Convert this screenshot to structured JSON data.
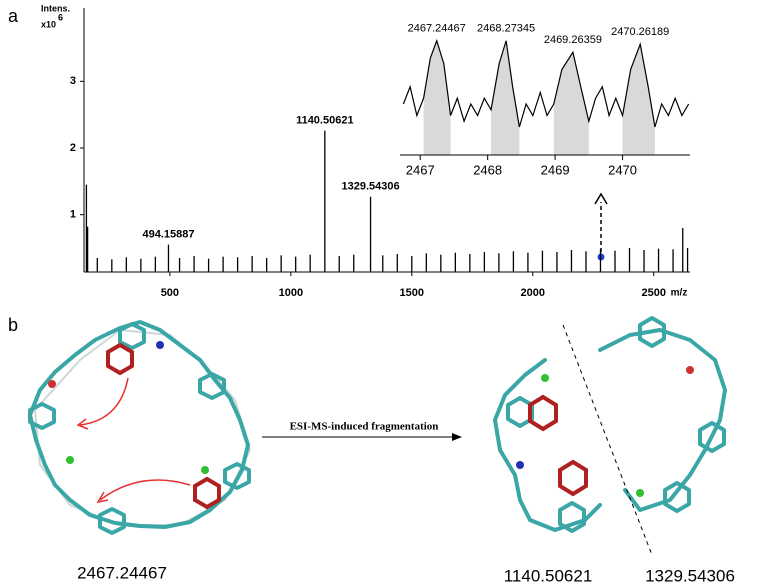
{
  "panel_labels": [
    "a",
    "b"
  ],
  "chart_data": [
    {
      "type": "bar",
      "y_label": "Intens.",
      "y_unit": "x10",
      "y_unit_exp": "6",
      "x_label": "m/z",
      "x": [
        155,
        160,
        200,
        260,
        320,
        380,
        440,
        494.15887,
        540,
        600,
        660,
        720,
        780,
        840,
        900,
        960,
        1020,
        1080,
        1140.50621,
        1200,
        1260,
        1329.54306,
        1380,
        1440,
        1500,
        1560,
        1620,
        1680,
        1740,
        1800,
        1860,
        1920,
        1980,
        2040,
        2100,
        2160,
        2220,
        2280,
        2340,
        2400,
        2460,
        2520,
        2580,
        2620,
        2640
      ],
      "values": [
        1.45,
        0.82,
        0.35,
        0.33,
        0.36,
        0.34,
        0.37,
        0.55,
        0.35,
        0.38,
        0.34,
        0.37,
        0.36,
        0.38,
        0.35,
        0.39,
        0.37,
        0.4,
        2.26,
        0.38,
        0.4,
        1.27,
        0.39,
        0.41,
        0.38,
        0.42,
        0.4,
        0.43,
        0.41,
        0.44,
        0.42,
        0.45,
        0.43,
        0.46,
        0.44,
        0.47,
        0.45,
        0.48,
        0.46,
        0.5,
        0.47,
        0.49,
        0.48,
        0.8,
        0.5
      ],
      "annotations": [
        494.15887,
        1140.50621,
        1329.54306
      ],
      "color": "#000000",
      "xlim": [
        145,
        2650
      ],
      "xticks": [
        500,
        1000,
        1500,
        2000,
        2500
      ],
      "ylim": [
        0.14,
        4.1
      ],
      "yticks": [
        1,
        2,
        3
      ]
    },
    {
      "type": "area",
      "x": [
        2466.75,
        2466.85,
        2466.95,
        2467.05,
        2467.15,
        2467.24467,
        2467.35,
        2467.45,
        2467.55,
        2467.65,
        2467.75,
        2467.85,
        2467.95,
        2468.05,
        2468.17,
        2468.27345,
        2468.37,
        2468.47,
        2468.57,
        2468.67,
        2468.78,
        2468.88,
        2468.98,
        2469.1,
        2469.26359,
        2469.4,
        2469.5,
        2469.6,
        2469.7,
        2469.8,
        2469.9,
        2470.0,
        2470.12,
        2470.26189,
        2470.38,
        2470.48,
        2470.58,
        2470.68,
        2470.78,
        2470.88,
        2470.98
      ],
      "values": [
        40,
        55,
        30,
        45,
        80,
        95,
        75,
        30,
        45,
        25,
        40,
        30,
        45,
        35,
        75,
        95,
        55,
        20,
        40,
        30,
        50,
        30,
        40,
        70,
        85,
        50,
        25,
        45,
        55,
        30,
        45,
        30,
        70,
        92,
        55,
        20,
        40,
        30,
        45,
        30,
        40
      ],
      "annotations": [
        2467.24467,
        2468.27345,
        2469.26359,
        2470.26189
      ],
      "color": "#000000",
      "fill": "#d9d9d9",
      "xlim": [
        2466.7,
        2471.0
      ],
      "xticks": [
        2467,
        2468,
        2469,
        2470
      ],
      "ylim": [
        0,
        100
      ]
    }
  ],
  "panel_b": {
    "arrow_label": "ESI-MS-induced fragmentation",
    "labels": [
      "2467.24467",
      "1140.50621",
      "1329.54306"
    ]
  }
}
